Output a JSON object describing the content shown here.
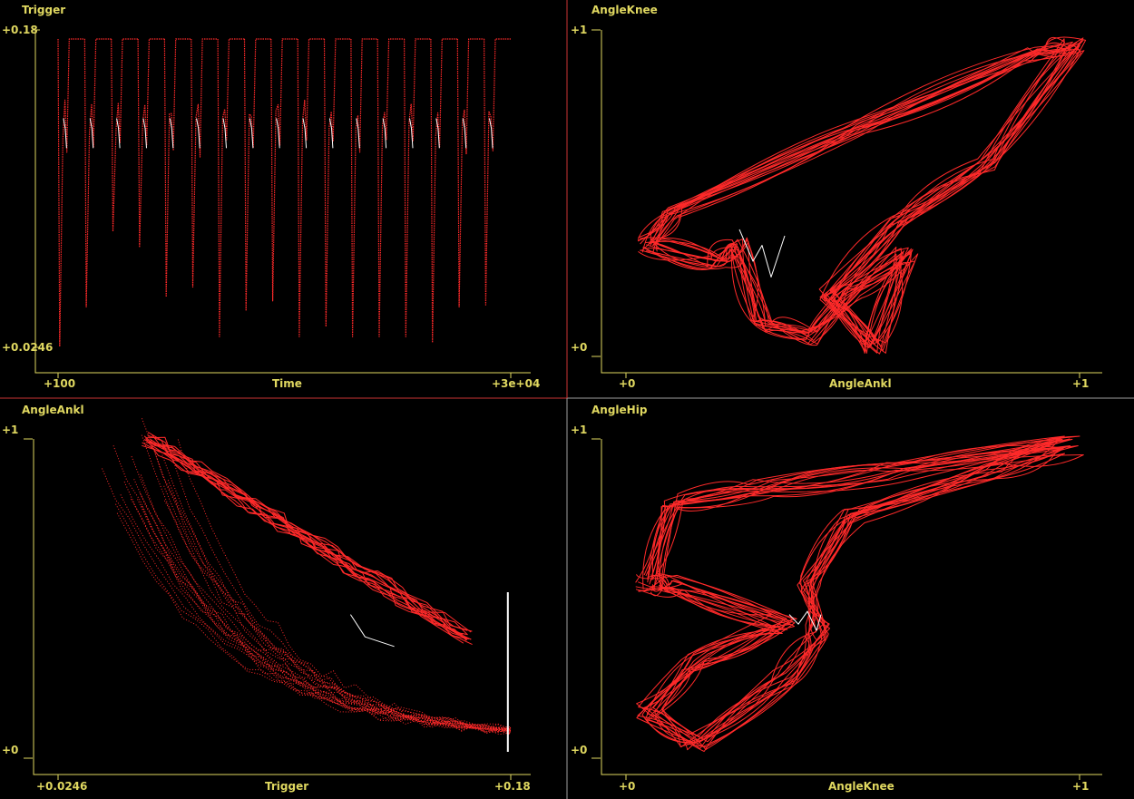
{
  "theme": {
    "background": "#000000",
    "axis_color": "#e0d860",
    "trace_color": "#ff2a2a",
    "highlight_color": "#ffffff",
    "divider_color": "#cc3333",
    "divider_alt_color": "#a0a0a0"
  },
  "chart_data": [
    {
      "type": "line",
      "title": "Trigger",
      "xlabel": "Time",
      "x_tick_labels": [
        "+100",
        "+3e+04"
      ],
      "y_tick_labels": [
        "+0.0246",
        "+0.18"
      ],
      "xlim": [
        100,
        30000
      ],
      "ylim": [
        0.0246,
        0.18
      ],
      "grid": false,
      "series": [
        {
          "cycles": 17,
          "x_start": 100,
          "x_end": 30000,
          "baseline": 0.18,
          "minima": [
            0.025,
            0.045,
            0.083,
            0.075,
            0.05,
            0.055,
            0.03,
            0.043,
            0.048,
            0.03,
            0.035,
            0.03,
            0.03,
            0.03,
            0.027,
            0.045,
            0.046
          ]
        }
      ]
    },
    {
      "type": "scatter",
      "title": "AngleKnee",
      "xlabel": "AngleAnkl",
      "x_tick_labels": [
        "+0",
        "+1"
      ],
      "y_tick_labels": [
        "+0",
        "+1"
      ],
      "xlim": [
        0,
        1
      ],
      "ylim": [
        0,
        1
      ],
      "grid": false,
      "series": [
        {
          "shape": "phase-loop",
          "x": [
            0.0,
            0.28,
            1.0,
            0.98,
            0.55,
            0.45
          ],
          "y": [
            0.35,
            0.3,
            1.0,
            0.95,
            0.1,
            0.35
          ]
        }
      ]
    },
    {
      "type": "scatter",
      "title": "AngleAnkl",
      "xlabel": "Trigger",
      "x_tick_labels": [
        "+0.0246",
        "+0.18"
      ],
      "y_tick_labels": [
        "+0",
        "+1"
      ],
      "xlim": [
        0.0246,
        0.18
      ],
      "ylim": [
        0,
        1
      ],
      "grid": false,
      "series": [
        {
          "shape": "fan",
          "x": [
            0.05,
            0.18,
            0.18,
            0.12
          ],
          "y": [
            1.0,
            0.05,
            0.5,
            0.4
          ]
        }
      ]
    },
    {
      "type": "scatter",
      "title": "AngleHip",
      "xlabel": "AngleKnee",
      "x_tick_labels": [
        "+0",
        "+1"
      ],
      "y_tick_labels": [
        "+0",
        "+1"
      ],
      "xlim": [
        0,
        1
      ],
      "ylim": [
        0,
        1
      ],
      "grid": false,
      "series": [
        {
          "shape": "phase-loop",
          "x": [
            0.0,
            0.35,
            1.0,
            0.05,
            0.25,
            0.4
          ],
          "y": [
            0.55,
            0.55,
            0.95,
            0.12,
            0.28,
            0.4
          ]
        }
      ]
    }
  ]
}
